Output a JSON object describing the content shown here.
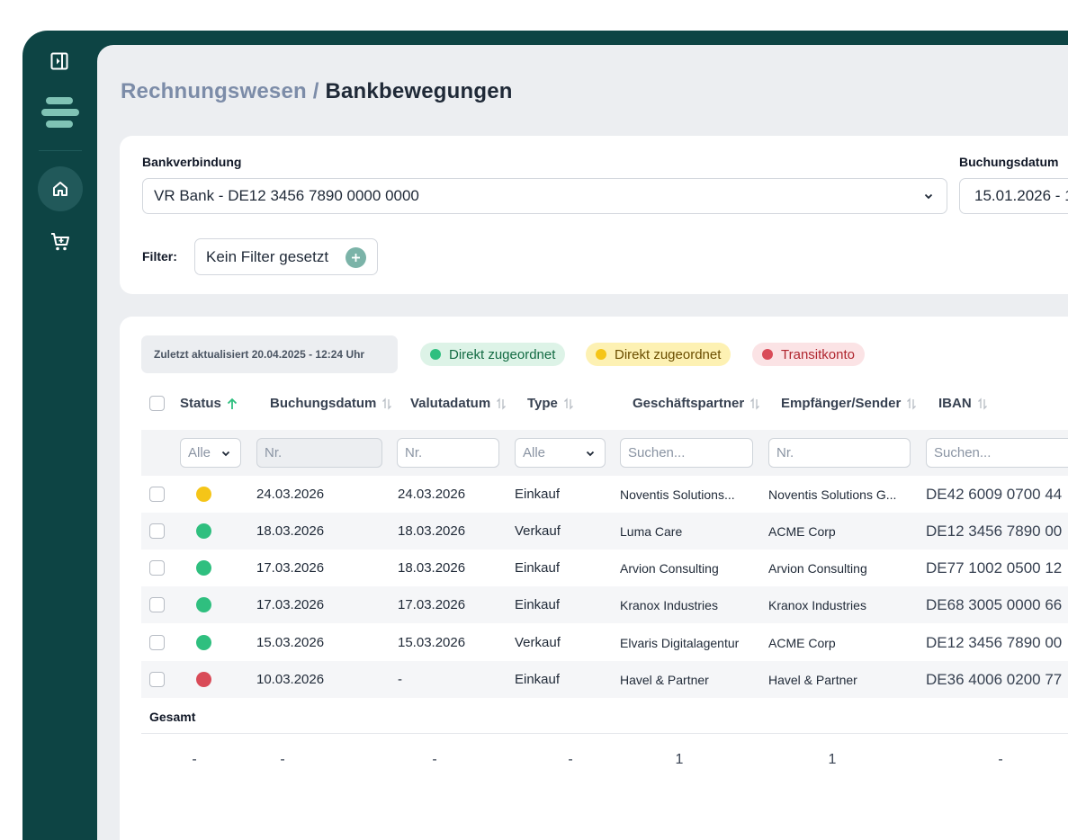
{
  "sidebar": {
    "items": [
      {
        "name": "collapse-sidebar-icon"
      },
      {
        "name": "logo"
      },
      {
        "name": "home-icon",
        "active": true
      },
      {
        "name": "cart-icon"
      }
    ]
  },
  "breadcrumb": {
    "parent": "Rechnungswesen",
    "separator": " / ",
    "current": "Bankbewegungen"
  },
  "filters": {
    "bank_label": "Bankverbindung",
    "bank_value": "VR Bank - DE12 3456 7890 0000 0000",
    "date_label": "Buchungsdatum",
    "date_value": "15.01.2026 - 1",
    "filter_label": "Filter:",
    "filter_button": "Kein Filter gesetzt"
  },
  "table": {
    "updated": "Zuletzt aktualisiert 20.04.2025 - 12:24 Uhr",
    "legend": [
      {
        "label": "Direkt zugeordnet",
        "dot": "#2fbf7f",
        "bg": "#ddf3e7",
        "text": "#136b43"
      },
      {
        "label": "Direkt zugeordnet",
        "dot": "#f5c518",
        "bg": "#fdf1b3",
        "text": "#6b4e00"
      },
      {
        "label": "Transitkonto",
        "dot": "#d94b58",
        "bg": "#fbe3e5",
        "text": "#b0262f"
      }
    ],
    "columns": [
      "Status",
      "Buchungsdatum",
      "Valutadatum",
      "Type",
      "Geschäftspartner",
      "Empfänger/Sender",
      "IBAN"
    ],
    "column_filters": [
      "Alle",
      "Nr.",
      "Nr.",
      "Alle",
      "Suchen...",
      "Nr.",
      "Suchen..."
    ],
    "rows": [
      {
        "status": "yellow",
        "status_color": "#f5c518",
        "booking": "24.03.2026",
        "value": "24.03.2026",
        "type": "Einkauf",
        "partner": "Noventis Solutions...",
        "recipient": "Noventis Solutions G...",
        "iban": "DE42 6009 0700 44"
      },
      {
        "status": "green",
        "status_color": "#2fbf7f",
        "booking": "18.03.2026",
        "value": "18.03.2026",
        "type": "Verkauf",
        "partner": "Luma Care",
        "recipient": "ACME Corp",
        "iban": "DE12 3456 7890 00"
      },
      {
        "status": "green",
        "status_color": "#2fbf7f",
        "booking": "17.03.2026",
        "value": "18.03.2026",
        "type": "Einkauf",
        "partner": "Arvion Consulting",
        "recipient": "Arvion Consulting",
        "iban": "DE77 1002 0500 12"
      },
      {
        "status": "green",
        "status_color": "#2fbf7f",
        "booking": "17.03.2026",
        "value": "17.03.2026",
        "type": "Einkauf",
        "partner": "Kranox Industries",
        "recipient": "Kranox Industries",
        "iban": "DE68 3005 0000 66"
      },
      {
        "status": "green",
        "status_color": "#2fbf7f",
        "booking": "15.03.2026",
        "value": "15.03.2026",
        "type": "Verkauf",
        "partner": "Elvaris Digitalagentur",
        "recipient": "ACME Corp",
        "iban": "DE12 3456 7890 00"
      },
      {
        "status": "red",
        "status_color": "#d94b58",
        "booking": "10.03.2026",
        "value": "-",
        "type": "Einkauf",
        "partner": "Havel & Partner",
        "recipient": "Havel & Partner",
        "iban": "DE36 4006 0200 77"
      }
    ],
    "total_label": "Gesamt",
    "totals": [
      "-",
      "-",
      "-",
      "-",
      "1",
      "1",
      "-"
    ]
  }
}
